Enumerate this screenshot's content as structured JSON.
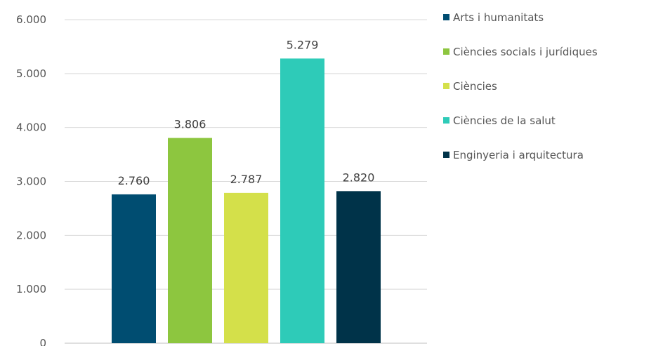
{
  "chart_data": {
    "type": "bar",
    "title": "",
    "xlabel": "",
    "ylabel": "",
    "ylim": [
      0,
      6000
    ],
    "yticks": [
      "0",
      "1.000",
      "2.000",
      "3.000",
      "4.000",
      "5.000",
      "6.000"
    ],
    "grid": true,
    "legend_position": "right",
    "series": [
      {
        "name": "Arts i humanitats",
        "value": 2760,
        "label": "2.760",
        "color": "#004d71"
      },
      {
        "name": "Ciències socials i jurídiques",
        "value": 3806,
        "label": "3.806",
        "color": "#8dc63f"
      },
      {
        "name": "Ciències",
        "value": 2787,
        "label": "2.787",
        "color": "#d4e04a"
      },
      {
        "name": "Ciències de la salut",
        "value": 5279,
        "label": "5.279",
        "color": "#2ecbb8"
      },
      {
        "name": "Enginyeria i arquitectura",
        "value": 2820,
        "label": "2.820",
        "color": "#003349"
      }
    ]
  }
}
